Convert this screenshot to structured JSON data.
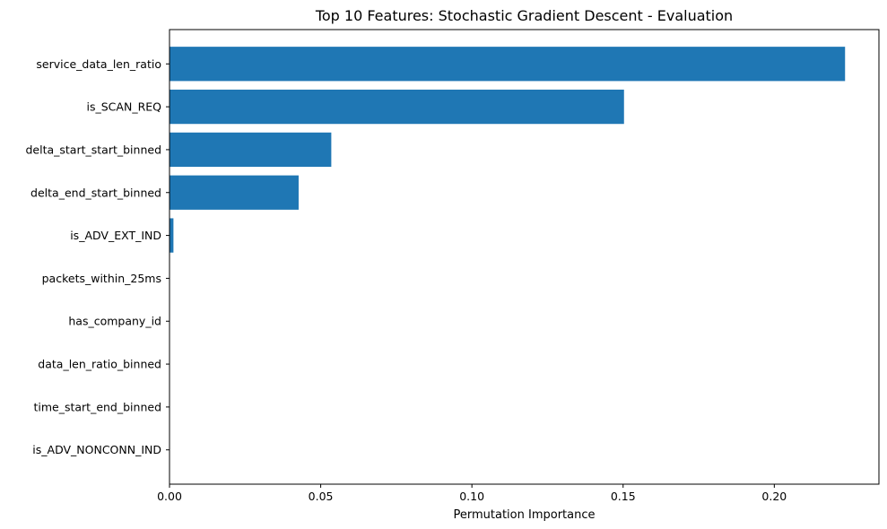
{
  "chart_data": {
    "type": "bar",
    "orientation": "horizontal",
    "title": "Top 10 Features: Stochastic Gradient Descent - Evaluation",
    "xlabel": "Permutation Importance",
    "ylabel": "",
    "categories": [
      "service_data_len_ratio",
      "is_SCAN_REQ",
      "delta_start_start_binned",
      "delta_end_start_binned",
      "is_ADV_EXT_IND",
      "packets_within_25ms",
      "has_company_id",
      "data_len_ratio_binned",
      "time_start_end_binned",
      "is_ADV_NONCONN_IND"
    ],
    "values": [
      0.2234,
      0.1503,
      0.0535,
      0.0427,
      0.0013,
      0.0,
      0.0,
      0.0,
      0.0,
      0.0
    ],
    "xlim": [
      0,
      0.2346
    ],
    "xticks": [
      0.0,
      0.05,
      0.1,
      0.15,
      0.2
    ],
    "xtick_labels": [
      "0.00",
      "0.05",
      "0.10",
      "0.15",
      "0.20"
    ],
    "bar_color": "#1f77b4",
    "grid": false,
    "legend": "none"
  }
}
